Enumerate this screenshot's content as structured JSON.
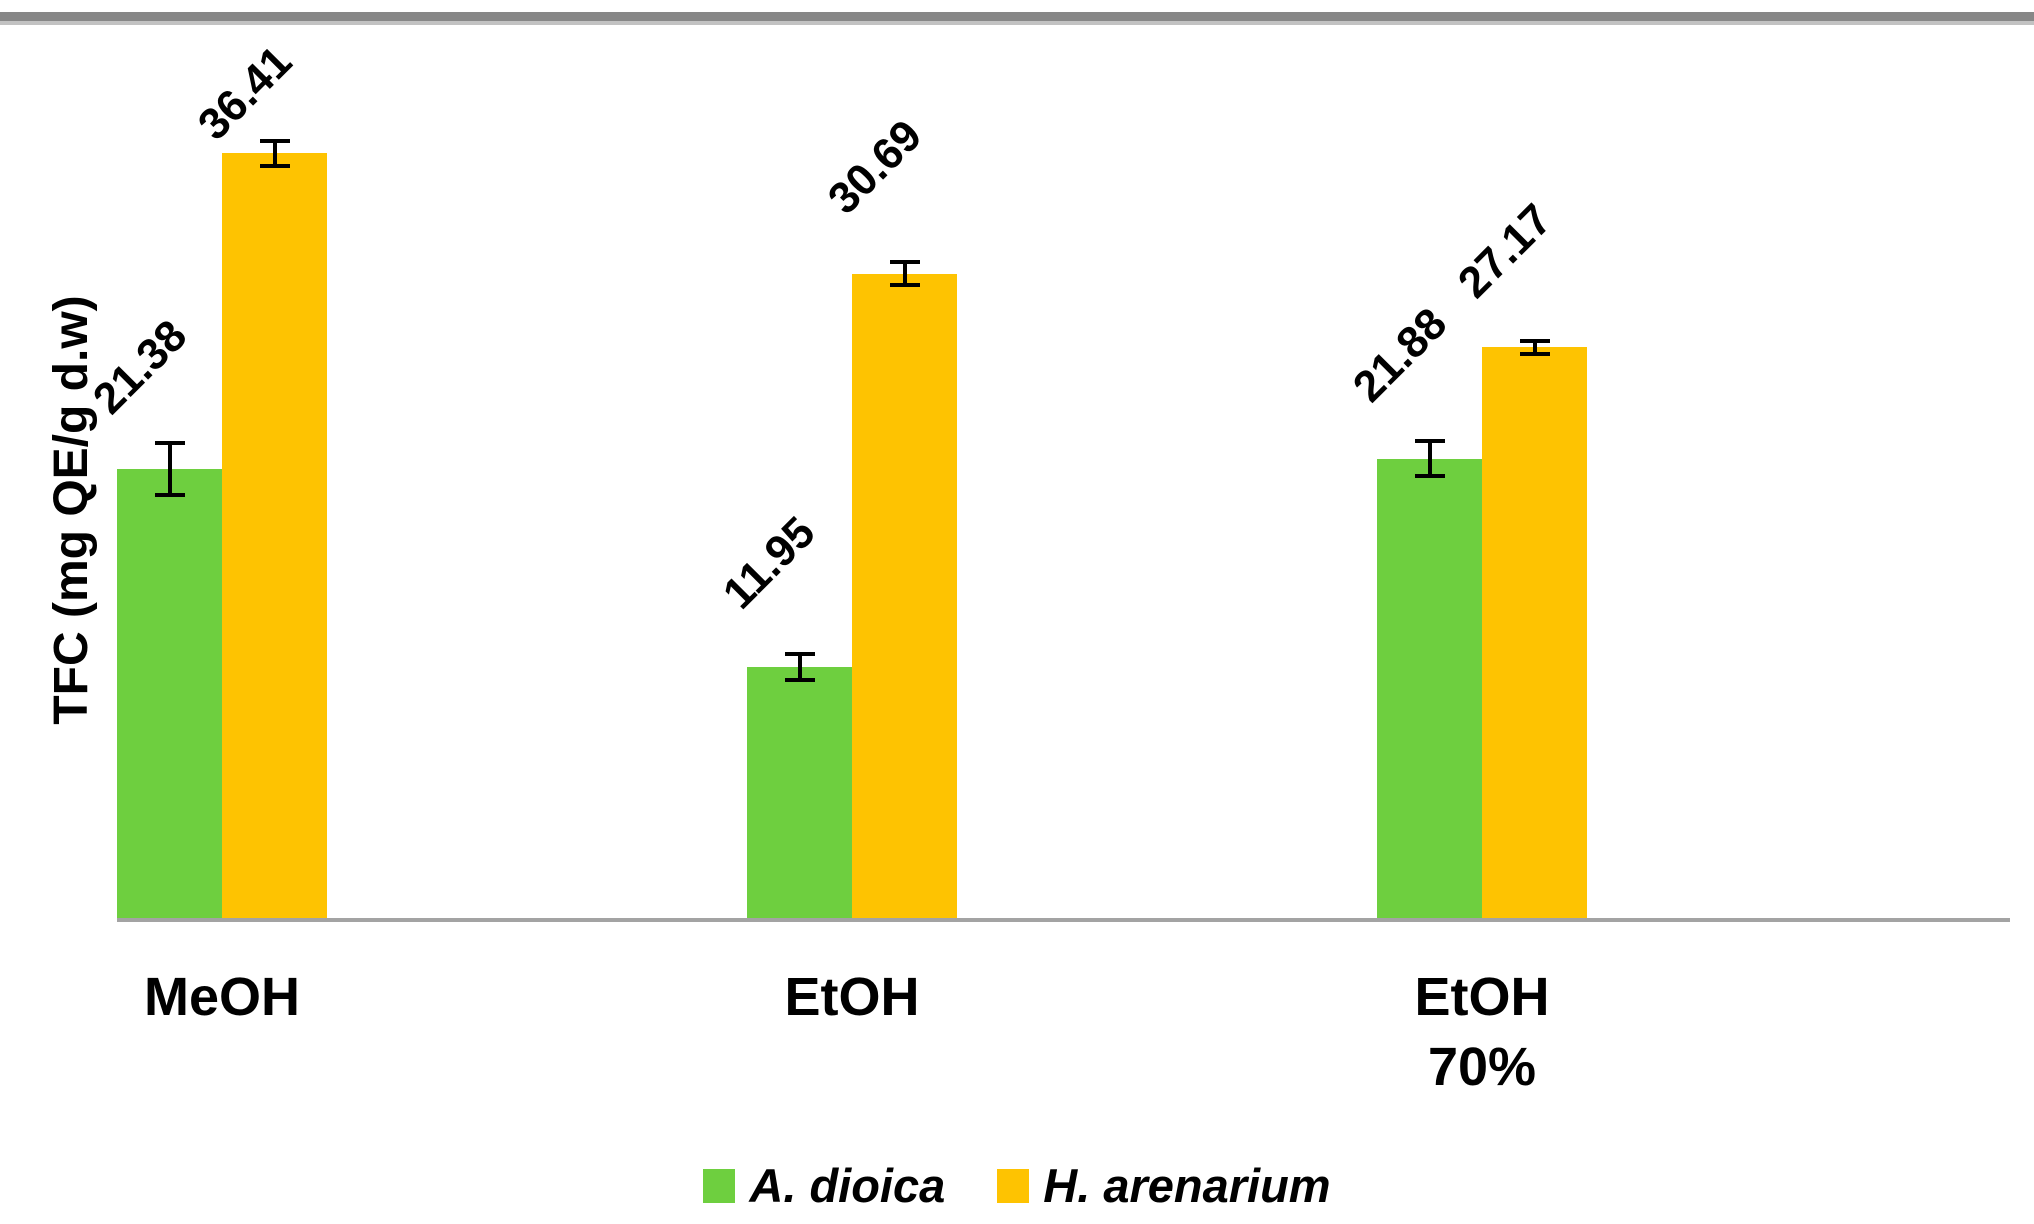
{
  "chart_data": {
    "type": "bar",
    "title": "",
    "ylabel": "TFC (mg QE/g d.w)",
    "xlabel": "",
    "categories": [
      "MeOH",
      "EtOH",
      "EtOH\n70%"
    ],
    "series": [
      {
        "name": "A. dioica",
        "color": "#6ECF3F",
        "values": [
          21.38,
          11.95,
          21.88
        ],
        "value_labels": [
          "21.38",
          "11.95",
          "21.88"
        ],
        "errors": [
          1.25,
          0.6,
          0.85
        ]
      },
      {
        "name": "H. arenarium",
        "color": "#FEC301",
        "values": [
          36.41,
          30.69,
          27.17
        ],
        "value_labels": [
          "36.41",
          "30.69",
          "27.17"
        ],
        "errors": [
          0.6,
          0.55,
          0.3
        ]
      }
    ],
    "ylim": [
      0,
      40
    ],
    "grid": false,
    "y_axis_tick_labels_visible": false,
    "legend_position": "bottom",
    "data_label_rotation_deg": 45,
    "error_bar_color": "#000000",
    "axis_color": "#a3a3a3"
  }
}
